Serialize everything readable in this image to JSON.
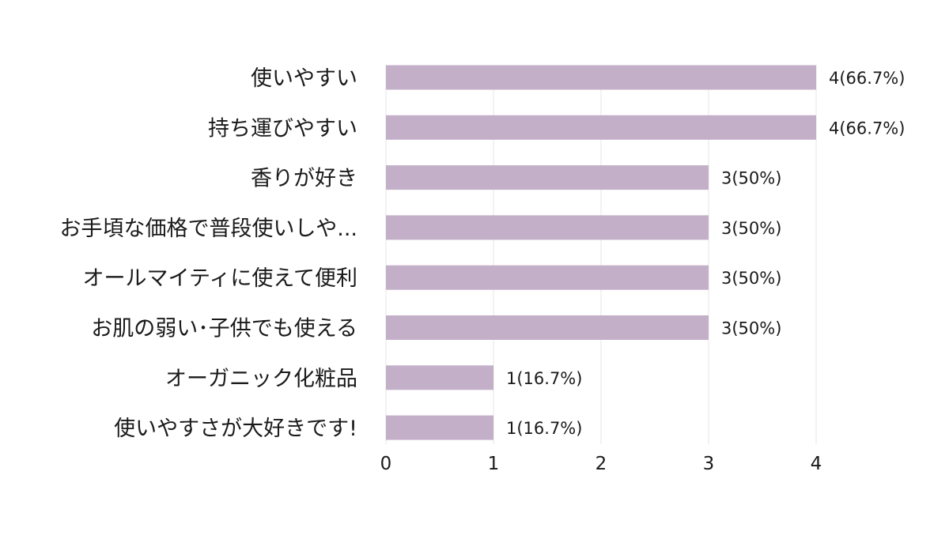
{
  "chart_data": {
    "type": "bar",
    "orientation": "horizontal",
    "categories": [
      "使いやすい",
      "持ち運びやすい",
      "香りが好き",
      "お手頃な価格で普段使いしや...",
      "オールマイティに使えて便利",
      "お肌の弱い･子供でも使える",
      "オーガニック化粧品",
      "使いやすさが大好きです!"
    ],
    "values": [
      4,
      4,
      3,
      3,
      3,
      3,
      1,
      1
    ],
    "data_labels": [
      "4(66.7%)",
      "4(66.7%)",
      "3(50%)",
      "3(50%)",
      "3(50%)",
      "3(50%)",
      "1(16.7%)",
      "1(16.7%)"
    ],
    "xticks": [
      "0",
      "1",
      "2",
      "3",
      "4"
    ],
    "xlim": [
      0,
      4
    ],
    "grid": true,
    "bar_color": "#c3b0c8",
    "grid_color": "#e6e6e6",
    "title": "",
    "xlabel": "",
    "ylabel": ""
  }
}
